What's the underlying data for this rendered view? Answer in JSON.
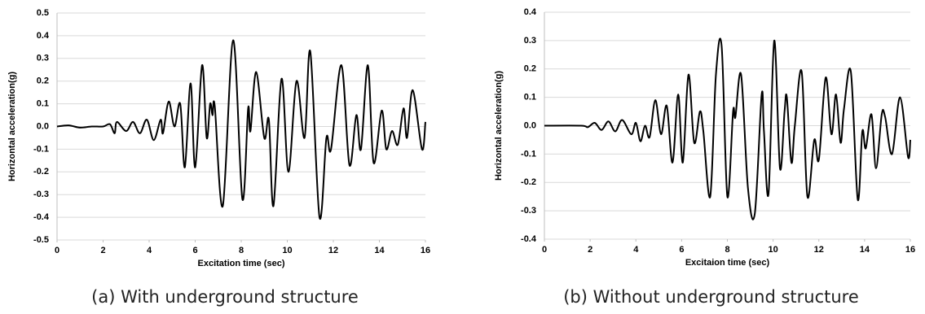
{
  "chart_data": [
    {
      "type": "line",
      "y_label": "Horizontal acceleration(g)",
      "x_label": "Excitation time (sec)",
      "caption": "(a) With underground structure",
      "color": "#000000",
      "grid": true,
      "xlim": [
        0,
        16
      ],
      "xticks": [
        0,
        2,
        4,
        6,
        8,
        10,
        12,
        14,
        16
      ],
      "ylim": [
        -0.5,
        0.5
      ],
      "yticks": [
        0.5,
        0.4,
        0.3,
        0.2,
        0.1,
        {
          "value": 0,
          "label": "0.0"
        },
        -0.1,
        -0.2,
        -0.3,
        -0.4,
        -0.5
      ],
      "x": [
        0,
        0.5,
        1.0,
        1.5,
        2.0,
        2.3,
        2.5,
        2.6,
        3.0,
        3.3,
        3.6,
        3.9,
        4.2,
        4.5,
        4.6,
        4.85,
        5.1,
        5.35,
        5.55,
        5.8,
        6.0,
        6.3,
        6.5,
        6.65,
        6.75,
        6.85,
        7.2,
        7.65,
        8.05,
        8.3,
        8.4,
        8.65,
        9.0,
        9.2,
        9.4,
        9.75,
        10.05,
        10.4,
        10.75,
        11.0,
        11.4,
        11.7,
        11.9,
        12.35,
        12.7,
        13.0,
        13.2,
        13.5,
        13.75,
        14.1,
        14.3,
        14.55,
        14.8,
        15.05,
        15.2,
        15.45,
        15.85,
        16
      ],
      "values": [
        0,
        0.005,
        -0.005,
        0,
        0,
        0.01,
        -0.03,
        0.02,
        -0.02,
        0.02,
        -0.03,
        0.03,
        -0.06,
        0.03,
        -0.03,
        0.11,
        0.0,
        0.1,
        -0.18,
        0.19,
        -0.18,
        0.27,
        -0.05,
        0.1,
        0.05,
        0.09,
        -0.35,
        0.38,
        -0.32,
        0.08,
        -0.02,
        0.24,
        -0.05,
        0.03,
        -0.35,
        0.21,
        -0.2,
        0.2,
        -0.05,
        0.33,
        -0.4,
        -0.05,
        -0.1,
        0.27,
        -0.17,
        0.05,
        -0.1,
        0.27,
        -0.16,
        0.07,
        -0.1,
        -0.02,
        -0.08,
        0.08,
        -0.05,
        0.16,
        -0.1,
        0.02
      ]
    },
    {
      "type": "line",
      "y_label": "Horizontal acceleration(g)",
      "x_label": "Excitaion time (sec)",
      "caption": "(b) Without underground structure",
      "color": "#000000",
      "grid": true,
      "xlim": [
        0,
        16
      ],
      "xticks": [
        0,
        2,
        4,
        6,
        8,
        10,
        12,
        14,
        16
      ],
      "ylim": [
        -0.4,
        0.4
      ],
      "yticks": [
        0.4,
        0.3,
        0.2,
        0.1,
        {
          "value": 0,
          "label": "0.0"
        },
        -0.1,
        -0.2,
        -0.3,
        -0.4
      ],
      "x": [
        0,
        1.6,
        1.9,
        2.2,
        2.5,
        2.8,
        3.1,
        3.4,
        3.8,
        4.0,
        4.2,
        4.4,
        4.6,
        4.85,
        5.1,
        5.35,
        5.6,
        5.85,
        6.05,
        6.3,
        6.55,
        6.8,
        6.95,
        7.25,
        7.5,
        7.75,
        8.0,
        8.25,
        8.35,
        8.6,
        8.9,
        9.2,
        9.5,
        9.6,
        9.8,
        10.05,
        10.3,
        10.5,
        10.6,
        10.8,
        10.95,
        11.25,
        11.5,
        11.8,
        12.0,
        12.3,
        12.55,
        12.75,
        12.95,
        13.1,
        13.4,
        13.7,
        13.9,
        14.05,
        14.3,
        14.5,
        14.75,
        14.9,
        15.2,
        15.55,
        15.9,
        16
      ],
      "values": [
        0,
        0,
        -0.005,
        0.01,
        -0.015,
        0.015,
        -0.02,
        0.02,
        -0.03,
        0.01,
        -0.055,
        0.0,
        -0.04,
        0.09,
        -0.03,
        0.07,
        -0.13,
        0.11,
        -0.13,
        0.18,
        -0.06,
        0.05,
        -0.02,
        -0.25,
        0.18,
        0.28,
        -0.25,
        0.05,
        0.03,
        0.18,
        -0.22,
        -0.31,
        0.11,
        -0.02,
        -0.24,
        0.3,
        -0.15,
        0.05,
        0.1,
        -0.13,
        0.0,
        0.19,
        -0.25,
        -0.05,
        -0.12,
        0.17,
        -0.03,
        0.11,
        -0.06,
        0.06,
        0.19,
        -0.26,
        -0.02,
        -0.08,
        0.04,
        -0.15,
        0.04,
        0.03,
        -0.1,
        0.1,
        -0.11,
        -0.05
      ]
    }
  ]
}
